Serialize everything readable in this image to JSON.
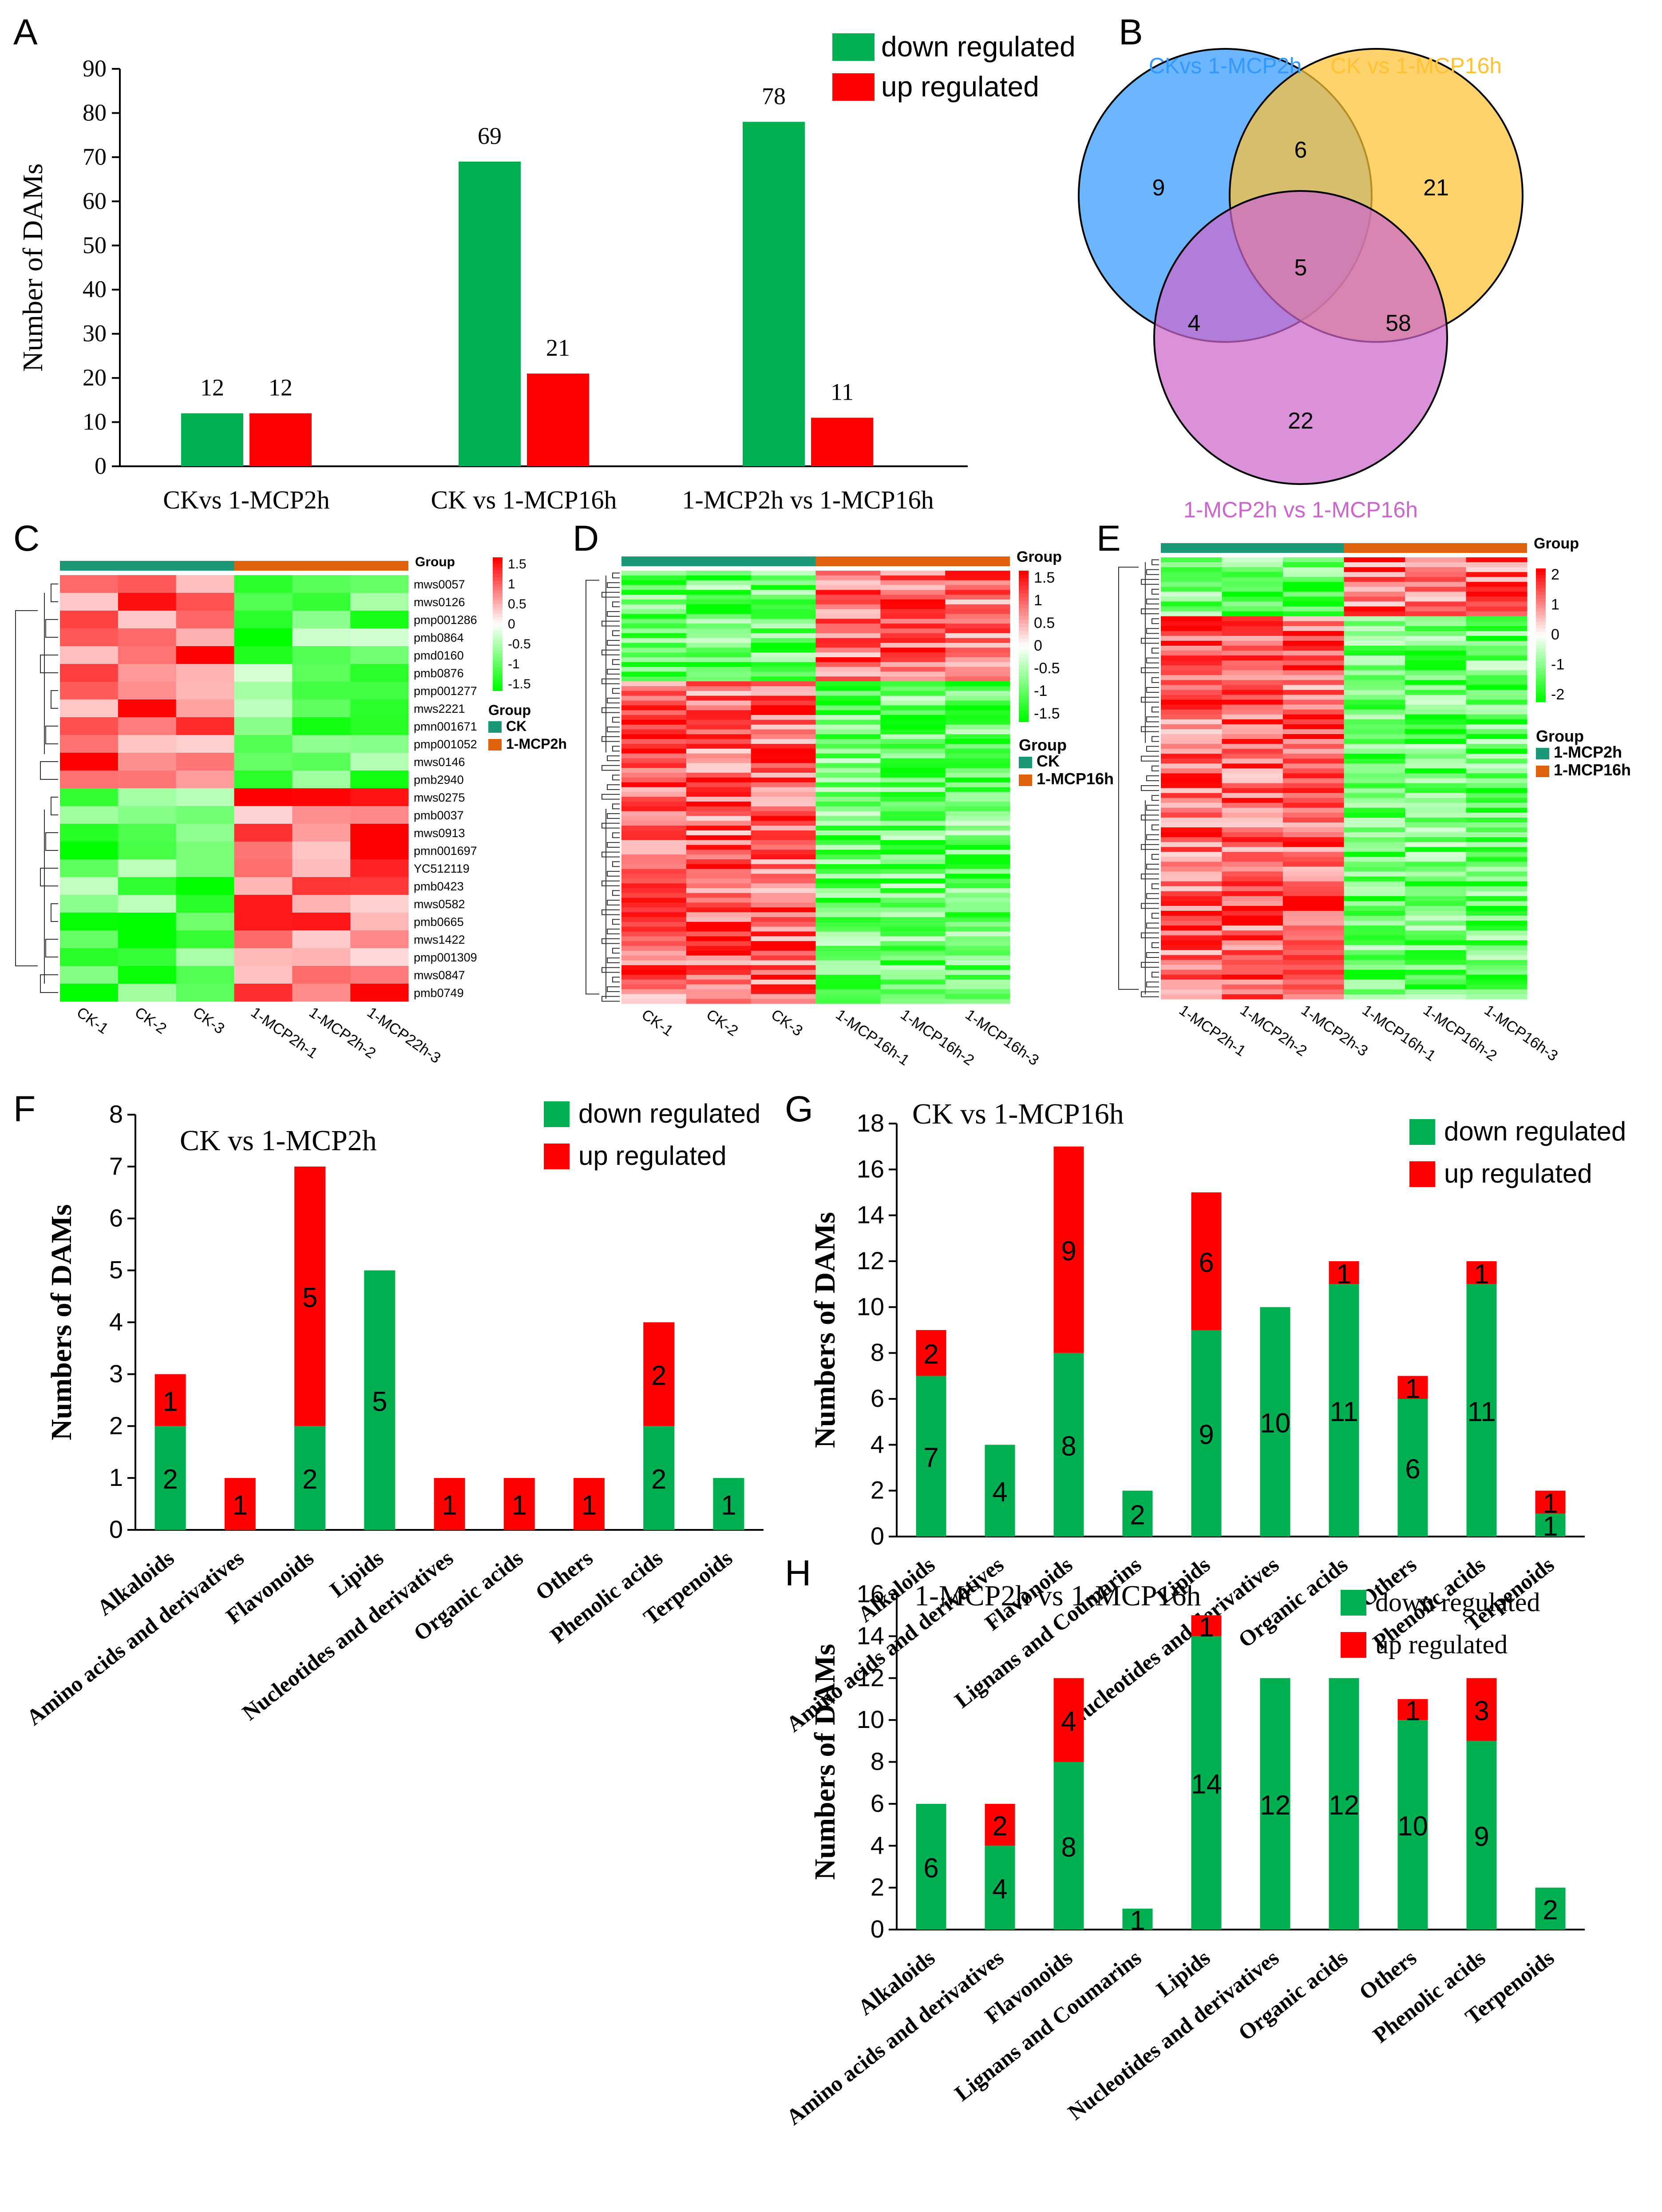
{
  "colors": {
    "down": "#00b050",
    "up": "#ff0000",
    "ck_bar": "#1a9878",
    "treat_bar": "#e0620e"
  },
  "panel_labels": [
    "A",
    "B",
    "C",
    "D",
    "E",
    "F",
    "G",
    "H"
  ],
  "chart_data": [
    {
      "id": "A",
      "type": "bar",
      "categories": [
        "CKvs 1-MCP2h",
        "CK vs 1-MCP16h",
        "1-MCP2h vs 1-MCP16h"
      ],
      "series": [
        {
          "name": "down regulated",
          "values": [
            12,
            69,
            78
          ]
        },
        {
          "name": "up regulated",
          "values": [
            12,
            21,
            11
          ]
        }
      ],
      "ylabel": "Number of DAMs",
      "ylim": [
        0,
        90
      ],
      "yticks": [
        "0",
        "10",
        "20",
        "30",
        "40",
        "50",
        "60",
        "70",
        "80",
        "90"
      ],
      "legend": "top-right"
    },
    {
      "id": "B",
      "type": "venn",
      "sets": [
        "CKvs 1-MCP2h",
        "CK vs 1-MCP16h",
        "1-MCP2h vs 1-MCP16h"
      ],
      "set_colors": [
        "#3399ff",
        "#ffc233",
        "#cc66cc"
      ],
      "regions": {
        "only_a": "9",
        "a_b": "6",
        "only_b": "21",
        "a_b_c": "5",
        "a_c": "4",
        "b_c": "58",
        "only_c": "22"
      }
    },
    {
      "id": "C",
      "type": "heatmap",
      "columns": [
        "CK-1",
        "CK-2",
        "CK-3",
        "1-MCP2h-1",
        "1-MCP2h-2",
        "1-MCP22h-3"
      ],
      "rows": [
        "mws0057",
        "mws0126",
        "pmp001286",
        "pmb0864",
        "pmd0160",
        "pmb0876",
        "pmp001277",
        "mws2221",
        "pmn001671",
        "pmp001052",
        "mws0146",
        "pmb2940",
        "mws0275",
        "pmb0037",
        "mws0913",
        "pmn001697",
        "YC512119",
        "pmb0423",
        "mws0582",
        "pmb0665",
        "mws1422",
        "pmp001309",
        "mws0847",
        "pmb0749"
      ],
      "scale": [
        "1.5",
        "1",
        "0.5",
        "0",
        "-0.5",
        "-1",
        "-1.5"
      ],
      "group_title": "Group",
      "groups": [
        "CK",
        "1-MCP2h"
      ]
    },
    {
      "id": "D",
      "type": "heatmap",
      "columns": [
        "CK-1",
        "CK-2",
        "CK-3",
        "1-MCP16h-1",
        "1-MCP16h-2",
        "1-MCP16h-3"
      ],
      "scale": [
        "1.5",
        "1",
        "0.5",
        "0",
        "-0.5",
        "-1",
        "-1.5"
      ],
      "group_title": "Group",
      "groups": [
        "CK",
        "1-MCP16h"
      ]
    },
    {
      "id": "E",
      "type": "heatmap",
      "columns": [
        "1-MCP2h-1",
        "1-MCP2h-2",
        "1-MCP2h-3",
        "1-MCP16h-1",
        "1-MCP16h-2",
        "1-MCP16h-3"
      ],
      "scale": [
        "2",
        "1",
        "0",
        "-1",
        "-2"
      ],
      "group_title": "Group",
      "groups": [
        "1-MCP2h",
        "1-MCP16h"
      ]
    },
    {
      "id": "F",
      "type": "bar",
      "stacked": true,
      "title": "CK vs 1-MCP2h",
      "categories": [
        "Alkaloids",
        "Amino acids and derivatives",
        "Flavonoids",
        "Lipids",
        "Nucleotides and derivatives",
        "Organic acids",
        "Others",
        "Phenolic acids",
        "Terpenoids"
      ],
      "series": [
        {
          "name": "down regulated",
          "values": [
            2,
            0,
            2,
            5,
            0,
            0,
            0,
            2,
            1
          ]
        },
        {
          "name": "up regulated",
          "values": [
            1,
            1,
            5,
            0,
            1,
            1,
            1,
            2,
            0
          ]
        }
      ],
      "ylabel": "Numbers of DAMs",
      "ylim": [
        0,
        8
      ],
      "yticks": [
        "0",
        "1",
        "2",
        "3",
        "4",
        "5",
        "6",
        "7",
        "8"
      ]
    },
    {
      "id": "G",
      "type": "bar",
      "stacked": true,
      "title": "CK vs 1-MCP16h",
      "categories": [
        "Alkaloids",
        "Amino acids and derivatives",
        "Flavonoids",
        "Lignans and Coumarins",
        "Lipids",
        "Nucleotides and derivatives",
        "Organic acids",
        "Others",
        "Phenolic acids",
        "Terpenoids"
      ],
      "series": [
        {
          "name": "down regulated",
          "values": [
            7,
            4,
            8,
            2,
            9,
            10,
            11,
            6,
            11,
            1
          ]
        },
        {
          "name": "up regulated",
          "values": [
            2,
            0,
            9,
            0,
            6,
            0,
            1,
            1,
            1,
            1
          ]
        }
      ],
      "ylabel": "Numbers of DAMs",
      "ylim": [
        0,
        18
      ],
      "yticks": [
        "0",
        "2",
        "4",
        "6",
        "8",
        "10",
        "12",
        "14",
        "16",
        "18"
      ]
    },
    {
      "id": "H",
      "type": "bar",
      "stacked": true,
      "title": "1-MCP2h vs 1-MCP16h",
      "categories": [
        "Alkaloids",
        "Amino acids and derivatives",
        "Flavonoids",
        "Lignans and Coumarins",
        "Lipids",
        "Nucleotides and derivatives",
        "Organic acids",
        "Others",
        "Phenolic acids",
        "Terpenoids"
      ],
      "series": [
        {
          "name": "down regulated",
          "values": [
            6,
            4,
            8,
            1,
            14,
            12,
            12,
            10,
            9,
            2
          ]
        },
        {
          "name": "up regulated",
          "values": [
            0,
            2,
            4,
            0,
            1,
            0,
            0,
            1,
            3,
            0
          ]
        }
      ],
      "ylabel": "Numbers of DAMs",
      "ylim": [
        0,
        16
      ],
      "yticks": [
        "0",
        "2",
        "4",
        "6",
        "8",
        "10",
        "12",
        "14",
        "16"
      ]
    }
  ]
}
